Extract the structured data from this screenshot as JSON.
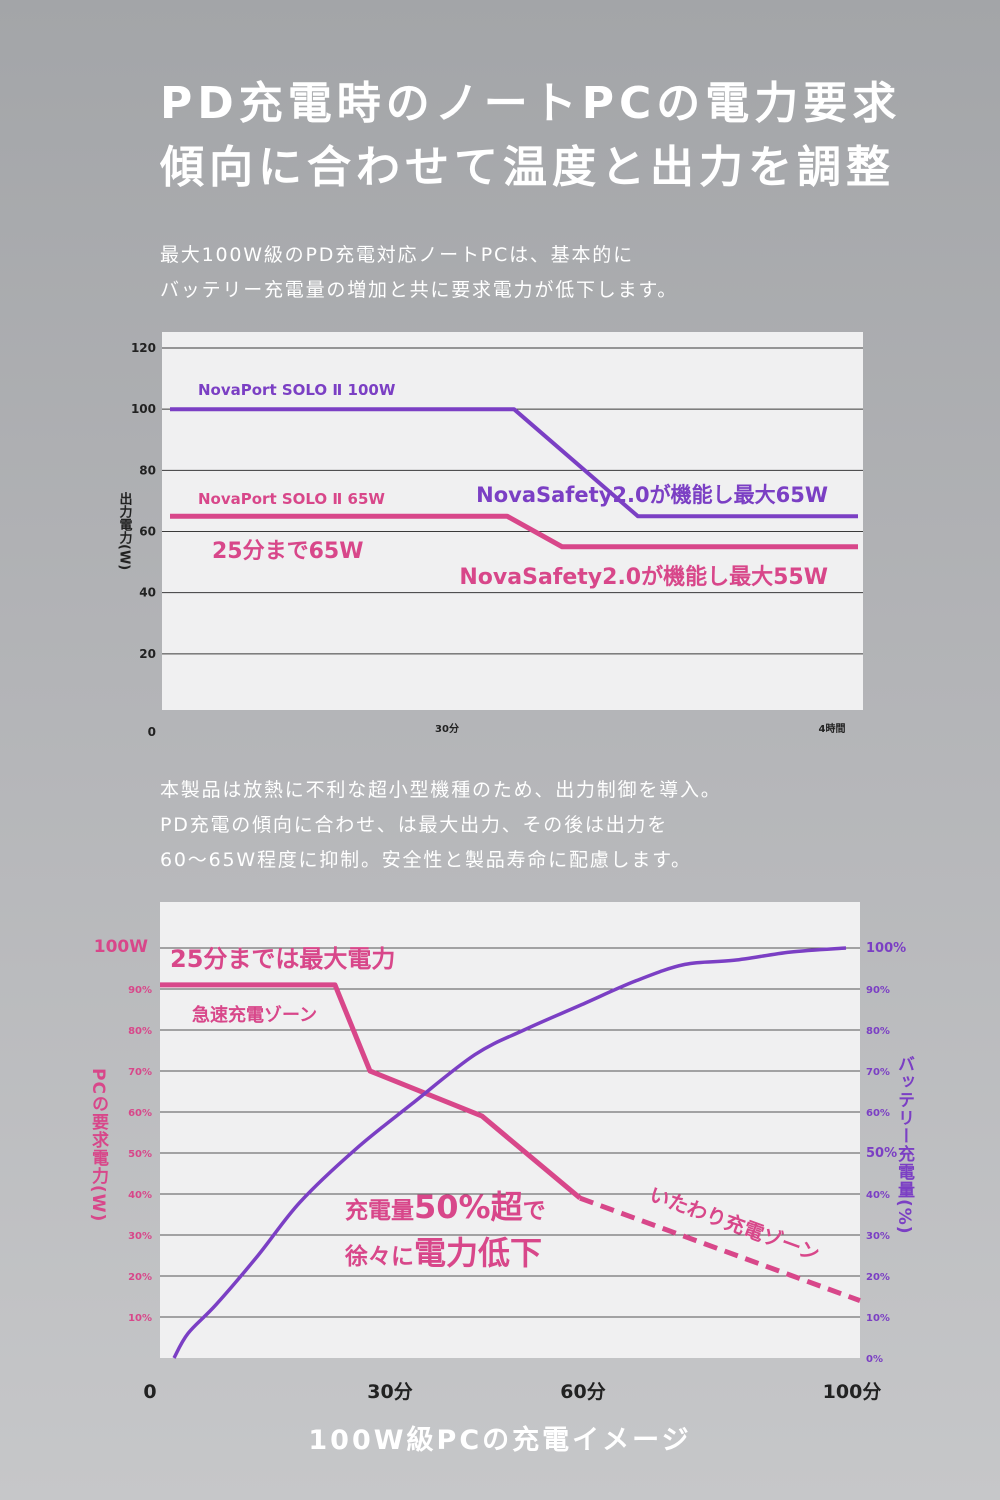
{
  "title": {
    "line1": "PD充電時のノートPCの電力要求",
    "line2": "傾向に合わせて温度と出力を調整"
  },
  "intro": {
    "line1": "最大100W級のPD充電対応ノートPCは、基本的に",
    "line2": "バッテリー充電量の増加と共に要求電力が低下します。"
  },
  "middle_text": {
    "line1": "本製品は放熱に不利な超小型機種のため、出力制御を導入。",
    "line2": "PD充電の傾向に合わせ、は最大出力、その後は出力を",
    "line3": "60～65W程度に抑制。安全性と製品寿命に配慮します。"
  },
  "footer_caption": "100W級PCの充電イメージ",
  "colors": {
    "purple": "#7b3fc4",
    "pink": "#d8478a",
    "grid": "#3a3a3a",
    "plot_bg": "#f0f0f1"
  },
  "chart_data": [
    {
      "type": "line",
      "ylabel": "出力電力(W)",
      "ylim": [
        0,
        120
      ],
      "yticks": [
        "0",
        "20",
        "40",
        "60",
        "80",
        "100",
        "120"
      ],
      "xticks": [
        "30分",
        "4時間"
      ],
      "series": [
        {
          "name": "NovaPort SOLO Ⅱ 100W",
          "color": "purple",
          "points": [
            [
              0,
              100
            ],
            [
              0.5,
              100
            ],
            [
              0.68,
              65
            ],
            [
              1.0,
              65
            ]
          ]
        },
        {
          "name": "NovaPort SOLO Ⅱ 65W",
          "color": "pink",
          "points": [
            [
              0,
              65
            ],
            [
              0.49,
              65
            ],
            [
              0.57,
              55
            ],
            [
              1.0,
              55
            ]
          ]
        }
      ],
      "annotations": {
        "purple_limit": "NovaSafety2.0が機能し最大65W",
        "pink_limit": "NovaSafety2.0が機能し最大55W",
        "pink_initial": "25分まで65W"
      }
    },
    {
      "type": "line",
      "title": "100W級PCの充電イメージ",
      "ylabel_left": "PCの要求電力(W)",
      "ylabel_right": "バッテリー充電量(%)",
      "left_ticks": [
        "10%",
        "20%",
        "30%",
        "40%",
        "50%",
        "60%",
        "70%",
        "80%",
        "90%",
        "100W"
      ],
      "right_ticks": [
        "0%",
        "10%",
        "20%",
        "30%",
        "40%",
        "50%",
        "60%",
        "70%",
        "80%",
        "90%",
        "100%"
      ],
      "xticks": [
        "0",
        "30分",
        "60分",
        "100分"
      ],
      "xlim": [
        0,
        100
      ],
      "ylim": [
        0,
        100
      ],
      "series": [
        {
          "name": "PCの要求電力",
          "color": "pink",
          "points": [
            [
              0,
              91
            ],
            [
              25,
              91
            ],
            [
              30,
              70
            ],
            [
              46,
              59
            ],
            [
              60,
              39
            ]
          ],
          "dashed_points": [
            [
              60,
              39
            ],
            [
              100,
              14
            ]
          ]
        },
        {
          "name": "バッテリー充電量",
          "color": "purple",
          "points": [
            [
              2,
              0
            ],
            [
              4,
              6
            ],
            [
              8,
              13
            ],
            [
              14,
              25
            ],
            [
              20,
              38
            ],
            [
              28,
              51
            ],
            [
              36,
              62
            ],
            [
              45,
              74
            ],
            [
              52,
              80
            ],
            [
              60,
              86
            ],
            [
              68,
              92
            ],
            [
              75,
              96
            ],
            [
              82,
              97
            ],
            [
              90,
              99
            ],
            [
              98,
              100
            ]
          ]
        }
      ],
      "annotations": {
        "peak": "25分までは最大電力",
        "fast_zone": "急速充電ゾーン",
        "gentle_zone": "いたわり充電ゾーン",
        "drop_line1_a": "充電量",
        "drop_line1_b": "50%超",
        "drop_line1_c": "で",
        "drop_line2_a": "徐々に",
        "drop_line2_b": "電力低下"
      }
    }
  ]
}
